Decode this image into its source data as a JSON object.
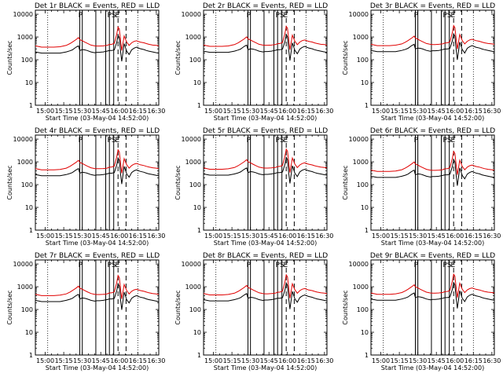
{
  "chart_data": {
    "type": "line",
    "panel_titles": [
      "Det 1r BLACK = Events, RED = LLD",
      "Det 2r BLACK = Events, RED = LLD",
      "Det 3r BLACK = Events, RED = LLD",
      "Det 4r BLACK = Events, RED = LLD",
      "Det 5r BLACK = Events, RED = LLD",
      "Det 6r BLACK = Events, RED = LLD",
      "Det 7r BLACK = Events, RED = LLD",
      "Det 8r BLACK = Events, RED = LLD",
      "Det 9r BLACK = Events, RED = LLD"
    ],
    "ylabel": "Counts/sec",
    "xlabel": "Start Time (03-May-04 14:52:00)",
    "x_tick_labels": [
      "15:00",
      "15:15",
      "15:30",
      "15:45",
      "16:00",
      "16:15",
      "16:30"
    ],
    "x_tick_minutes": [
      8,
      23,
      38,
      53,
      68,
      83,
      98
    ],
    "xlim_minutes": [
      0,
      100
    ],
    "y_tick_labels": [
      "1",
      "10",
      "100",
      "1000",
      "10000"
    ],
    "y_tick_values": [
      1,
      10,
      100,
      1000,
      10000
    ],
    "ylim": [
      1,
      15000
    ],
    "ylog": true,
    "annotation_labels": [
      "P",
      "P",
      "S",
      "E"
    ],
    "annotation_x_minutes": [
      36.5,
      60,
      63.5,
      66.5
    ],
    "dotted_line_x_minutes": [
      10,
      83
    ],
    "solid_lines_x_minutes": [
      36,
      38,
      49,
      57,
      60,
      63.5
    ],
    "dashed_lines_x_minutes": [
      67,
      73.5
    ],
    "series": [
      {
        "color": "#000000",
        "x": [
          0,
          5,
          10,
          15,
          20,
          25,
          28,
          30,
          33,
          35,
          36,
          38,
          40,
          42,
          45,
          48,
          50,
          52,
          55,
          58,
          60,
          62,
          64,
          66,
          67,
          68,
          69,
          70,
          72,
          74,
          76,
          78,
          80,
          82,
          85,
          88,
          90,
          92,
          95,
          98,
          100
        ],
        "values": [
          260,
          230,
          230,
          230,
          230,
          260,
          290,
          320,
          420,
          480,
          300,
          330,
          320,
          300,
          260,
          240,
          250,
          250,
          260,
          280,
          300,
          300,
          320,
          700,
          1400,
          1100,
          300,
          100,
          600,
          280,
          200,
          320,
          380,
          420,
          360,
          330,
          300,
          280,
          260,
          240,
          230
        ]
      },
      {
        "color": "#e00000",
        "x": [
          0,
          5,
          10,
          15,
          20,
          25,
          28,
          30,
          33,
          35,
          36,
          38,
          40,
          42,
          45,
          48,
          50,
          52,
          55,
          58,
          60,
          62,
          64,
          66,
          67,
          68,
          69,
          70,
          72,
          74,
          76,
          78,
          80,
          82,
          85,
          88,
          90,
          92,
          95,
          98,
          100
        ],
        "values": [
          480,
          420,
          420,
          420,
          440,
          500,
          600,
          700,
          900,
          1100,
          900,
          800,
          700,
          620,
          520,
          480,
          470,
          470,
          480,
          500,
          550,
          560,
          620,
          1600,
          3200,
          2600,
          900,
          300,
          1300,
          700,
          500,
          650,
          750,
          800,
          700,
          650,
          600,
          560,
          520,
          500,
          480
        ]
      }
    ]
  }
}
